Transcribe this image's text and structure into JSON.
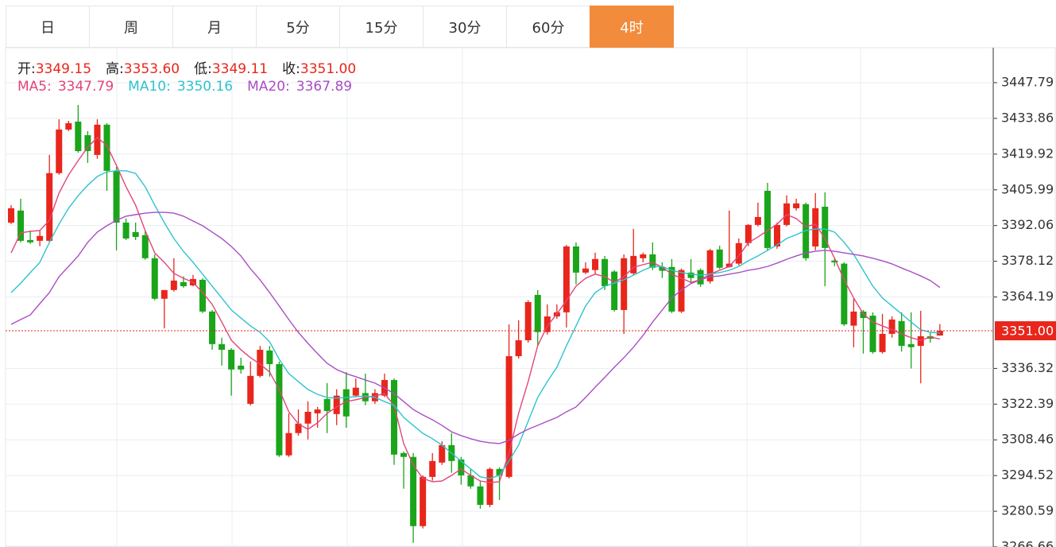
{
  "tabs": [
    "日",
    "周",
    "月",
    "5分",
    "15分",
    "30分",
    "60分",
    "4时"
  ],
  "active_tab": 7,
  "quote": [
    {
      "label": "开:",
      "value": "3349.15"
    },
    {
      "label": "高:",
      "value": "3353.60"
    },
    {
      "label": "低:",
      "value": "3349.11"
    },
    {
      "label": "收:",
      "value": "3351.00"
    }
  ],
  "chart_data": {
    "type": "candlestick",
    "up_color": "#e8261c",
    "down_color": "#1aa51a",
    "ylim": [
      3266.66,
      3461.43
    ],
    "yticks": [
      3266.66,
      3280.59,
      3294.52,
      3308.46,
      3322.39,
      3336.32,
      3364.19,
      3378.12,
      3392.06,
      3405.99,
      3419.92,
      3433.86,
      3447.79
    ],
    "grid": true,
    "last_price": {
      "value": 3351,
      "label": "3351.00"
    },
    "open": [
      3393.2,
      3397.9,
      3386.4,
      3386.1,
      3386.1,
      3412.5,
      3429.5,
      3432.6,
      3427.3,
      3419.6,
      3431.4,
      3413.4,
      3393.2,
      3389.5,
      3388.3,
      3379.3,
      3363.5,
      3366.9,
      3370.0,
      3368.7,
      3370.9,
      3358.5,
      3345.8,
      3343.6,
      3337.4,
      3322.5,
      3333.4,
      3343.3,
      3338.0,
      3302.4,
      3311.1,
      3314.8,
      3318.8,
      3324.4,
      3318.5,
      3328.2,
      3325.7,
      3326.7,
      3323.5,
      3325.7,
      3331.8,
      3303.3,
      3301.8,
      3274.8,
      3294.0,
      3299.6,
      3306.4,
      3300.8,
      3294.6,
      3290.3,
      3283.1,
      3297.1,
      3294.0,
      3341.1,
      3347.3,
      3365.0,
      3350.5,
      3356.6,
      3358.2,
      3383.9,
      3373.7,
      3374.7,
      3379.0,
      3374.1,
      3359.1,
      3373.4,
      3379.3,
      3380.8,
      3375.9,
      3375.9,
      3358.5,
      3373.7,
      3374.7,
      3370.3,
      3382.7,
      3375.9,
      3377.2,
      3385.2,
      3392.3,
      3405.6,
      3383.9,
      3392.3,
      3398.8,
      3400.4,
      3383.9,
      3399.4,
      3378.4,
      3377.2,
      3353.0,
      3358.5,
      3356.9,
      3342.7,
      3349.8,
      3354.8,
      3345.8,
      3345.1,
      3348.9,
      3349.15
    ],
    "high": [
      3400.0,
      3402.5,
      3390.1,
      3390.1,
      3419.6,
      3433.5,
      3432.9,
      3439.1,
      3428.9,
      3433.5,
      3432.0,
      3414.9,
      3394.8,
      3393.2,
      3390.1,
      3380.8,
      3366.9,
      3379.3,
      3372.2,
      3372.8,
      3371.5,
      3359.1,
      3348.3,
      3344.2,
      3340.5,
      3339.0,
      3345.1,
      3345.1,
      3339.0,
      3318.8,
      3320.3,
      3323.5,
      3321.3,
      3330.6,
      3328.2,
      3334.9,
      3332.4,
      3334.3,
      3328.2,
      3334.3,
      3332.4,
      3303.9,
      3303.3,
      3294.6,
      3303.3,
      3307.9,
      3311.1,
      3301.8,
      3297.1,
      3292.5,
      3297.7,
      3297.7,
      3353.5,
      3355.1,
      3362.9,
      3366.9,
      3361.3,
      3361.3,
      3384.5,
      3385.5,
      3377.7,
      3381.5,
      3380.2,
      3374.7,
      3380.8,
      3390.8,
      3381.5,
      3385.5,
      3377.7,
      3379.0,
      3375.3,
      3379.0,
      3375.3,
      3383.0,
      3384.2,
      3397.9,
      3387.0,
      3392.6,
      3401.0,
      3408.7,
      3393.2,
      3403.8,
      3402.5,
      3401.0,
      3404.7,
      3405.0,
      3379.3,
      3377.7,
      3363.5,
      3359.1,
      3358.2,
      3357.6,
      3356.6,
      3358.2,
      3358.2,
      3358.8,
      3350.2,
      3353.6
    ],
    "low": [
      3392.6,
      3385.5,
      3384.9,
      3384.0,
      3385.5,
      3411.9,
      3428.9,
      3420.5,
      3416.5,
      3418.1,
      3405.6,
      3382.4,
      3386.4,
      3386.4,
      3378.7,
      3362.9,
      3352.0,
      3366.3,
      3367.8,
      3368.4,
      3357.9,
      3343.6,
      3337.4,
      3325.7,
      3334.3,
      3321.9,
      3332.8,
      3333.1,
      3301.8,
      3301.8,
      3310.1,
      3308.6,
      3313.2,
      3311.1,
      3314.2,
      3313.2,
      3325.1,
      3322.0,
      3322.5,
      3325.1,
      3298.7,
      3289.4,
      3268.3,
      3273.9,
      3292.5,
      3298.7,
      3295.6,
      3291.0,
      3289.4,
      3281.6,
      3282.2,
      3285.0,
      3293.4,
      3340.2,
      3346.4,
      3345.2,
      3349.5,
      3355.7,
      3352.3,
      3369.1,
      3373.1,
      3373.1,
      3366.9,
      3358.5,
      3349.8,
      3372.8,
      3377.7,
      3374.7,
      3371.6,
      3357.9,
      3357.9,
      3369.4,
      3368.1,
      3369.4,
      3375.0,
      3375.6,
      3376.5,
      3384.0,
      3391.7,
      3382.1,
      3383.0,
      3391.7,
      3397.9,
      3378.4,
      3382.4,
      3368.4,
      3376.2,
      3352.9,
      3344.6,
      3342.1,
      3342.1,
      3342.1,
      3348.3,
      3342.9,
      3336.3,
      3330.5,
      3346.4,
      3349.11
    ],
    "close": [
      3398.8,
      3386.1,
      3385.5,
      3388.0,
      3412.5,
      3429.5,
      3432.0,
      3421.1,
      3421.1,
      3431.4,
      3413.4,
      3393.2,
      3387.0,
      3387.6,
      3379.3,
      3363.5,
      3366.9,
      3370.6,
      3368.4,
      3371.2,
      3358.5,
      3345.8,
      3343.6,
      3335.9,
      3335.9,
      3333.4,
      3343.6,
      3338.0,
      3302.4,
      3311.1,
      3314.8,
      3319.4,
      3320.3,
      3319.7,
      3325.7,
      3317.6,
      3328.8,
      3323.5,
      3326.7,
      3331.8,
      3302.7,
      3301.8,
      3274.8,
      3294.0,
      3300.2,
      3306.4,
      3300.2,
      3294.6,
      3290.3,
      3283.1,
      3297.1,
      3294.6,
      3341.1,
      3347.3,
      3362.2,
      3350.5,
      3356.6,
      3358.2,
      3383.9,
      3373.7,
      3375.3,
      3379.0,
      3368.4,
      3359.1,
      3379.3,
      3380.2,
      3380.8,
      3375.6,
      3374.4,
      3358.5,
      3374.7,
      3371.6,
      3369.1,
      3382.4,
      3375.6,
      3377.2,
      3385.2,
      3392.3,
      3395.4,
      3383.3,
      3392.3,
      3400.7,
      3400.7,
      3379.3,
      3398.8,
      3383.3,
      3377.7,
      3353.5,
      3358.5,
      3356.0,
      3342.7,
      3349.8,
      3355.4,
      3345.1,
      3344.6,
      3348.9,
      3347.9,
      3351.0
    ],
    "series": [
      {
        "name": "MA5:",
        "value_label": "3347.79",
        "color": "#e3457a",
        "values": [
          3381.4,
          3389.2,
          3389.8,
          3390.1,
          3394.1,
          3404.7,
          3411.8,
          3417.4,
          3422.6,
          3426.4,
          3423.3,
          3415.5,
          3407.2,
          3400.0,
          3390.1,
          3381.4,
          3377.7,
          3373.4,
          3371.5,
          3369.9,
          3365.9,
          3361.3,
          3354.4,
          3347.3,
          3343.6,
          3340.5,
          3338.0,
          3334.9,
          3328.1,
          3319.4,
          3314.7,
          3312.6,
          3315.1,
          3318.8,
          3321.3,
          3323.4,
          3324.1,
          3325.0,
          3325.6,
          3326.5,
          3321.9,
          3307.0,
          3298.6,
          3293.4,
          3292.1,
          3292.4,
          3294.6,
          3297.1,
          3294.6,
          3292.4,
          3291.8,
          3292.1,
          3303.3,
          3318.8,
          3331.2,
          3345.2,
          3352.9,
          3357.6,
          3362.8,
          3368.4,
          3371.5,
          3373.1,
          3372.1,
          3369.9,
          3372.1,
          3375.8,
          3376.8,
          3377.7,
          3375.8,
          3373.1,
          3371.5,
          3369.9,
          3370.9,
          3373.1,
          3374.6,
          3376.1,
          3380.2,
          3385.4,
          3387.6,
          3390.1,
          3392.6,
          3396.3,
          3394.8,
          3391.6,
          3392.6,
          3387.0,
          3379.3,
          3370.9,
          3363.8,
          3357.6,
          3354.4,
          3352.9,
          3351.4,
          3349.8,
          3348.3,
          3347.3,
          3348.6,
          3347.79
        ]
      },
      {
        "name": "MA10:",
        "value_label": "3350.16",
        "color": "#2ec3cf",
        "values": [
          3365.9,
          3369.6,
          3373.7,
          3377.7,
          3385.5,
          3392.6,
          3398.8,
          3403.7,
          3407.8,
          3411.2,
          3413.0,
          3413.4,
          3413.4,
          3412.4,
          3407.2,
          3400.0,
          3393.2,
          3387.0,
          3382.0,
          3377.7,
          3373.1,
          3368.4,
          3363.8,
          3359.1,
          3356.0,
          3352.9,
          3350.4,
          3346.7,
          3339.9,
          3334.3,
          3331.2,
          3328.1,
          3326.2,
          3325.0,
          3324.7,
          3325.0,
          3325.3,
          3325.6,
          3325.0,
          3323.4,
          3321.9,
          3317.2,
          3314.1,
          3311.0,
          3308.9,
          3306.4,
          3303.3,
          3300.2,
          3297.1,
          3294.0,
          3293.4,
          3294.6,
          3300.2,
          3306.4,
          3315.7,
          3325.0,
          3331.2,
          3336.8,
          3345.2,
          3352.9,
          3360.7,
          3365.9,
          3368.4,
          3369.6,
          3370.9,
          3372.7,
          3374.6,
          3376.1,
          3376.1,
          3374.6,
          3373.7,
          3373.1,
          3372.7,
          3373.1,
          3373.7,
          3374.6,
          3376.1,
          3378.3,
          3380.2,
          3382.4,
          3384.5,
          3387.0,
          3388.5,
          3390.1,
          3390.7,
          3390.7,
          3389.5,
          3385.5,
          3380.8,
          3374.6,
          3368.4,
          3363.8,
          3360.7,
          3357.6,
          3354.4,
          3351.4,
          3350.4,
          3350.16
        ]
      },
      {
        "name": "MA20:",
        "value_label": "3367.89",
        "color": "#a94ec4",
        "values": [
          3353.5,
          3355.4,
          3357.2,
          3361.6,
          3365.9,
          3372.1,
          3376.1,
          3380.2,
          3385.5,
          3389.5,
          3392.0,
          3394.1,
          3395.7,
          3396.3,
          3396.9,
          3397.2,
          3397.2,
          3396.9,
          3395.7,
          3393.8,
          3392.0,
          3389.5,
          3387.0,
          3383.9,
          3380.2,
          3375.2,
          3370.9,
          3365.9,
          3360.7,
          3355.4,
          3350.4,
          3346.1,
          3342.1,
          3338.3,
          3335.9,
          3334.3,
          3333.1,
          3331.8,
          3330.6,
          3328.7,
          3326.5,
          3323.4,
          3320.3,
          3318.2,
          3316.3,
          3314.1,
          3311.6,
          3310.1,
          3308.9,
          3307.9,
          3307.3,
          3307.0,
          3308.3,
          3310.7,
          3312.6,
          3314.1,
          3315.7,
          3317.2,
          3319.4,
          3321.3,
          3325.0,
          3329.0,
          3332.8,
          3336.8,
          3340.5,
          3344.6,
          3349.2,
          3354.4,
          3359.1,
          3363.8,
          3366.9,
          3369.4,
          3370.9,
          3372.1,
          3372.4,
          3373.1,
          3373.7,
          3374.6,
          3375.2,
          3376.1,
          3377.4,
          3378.9,
          3380.2,
          3381.4,
          3382.0,
          3382.4,
          3382.0,
          3381.4,
          3380.8,
          3380.2,
          3379.3,
          3378.3,
          3377.1,
          3375.5,
          3374.0,
          3372.4,
          3370.6,
          3367.89
        ]
      }
    ]
  }
}
